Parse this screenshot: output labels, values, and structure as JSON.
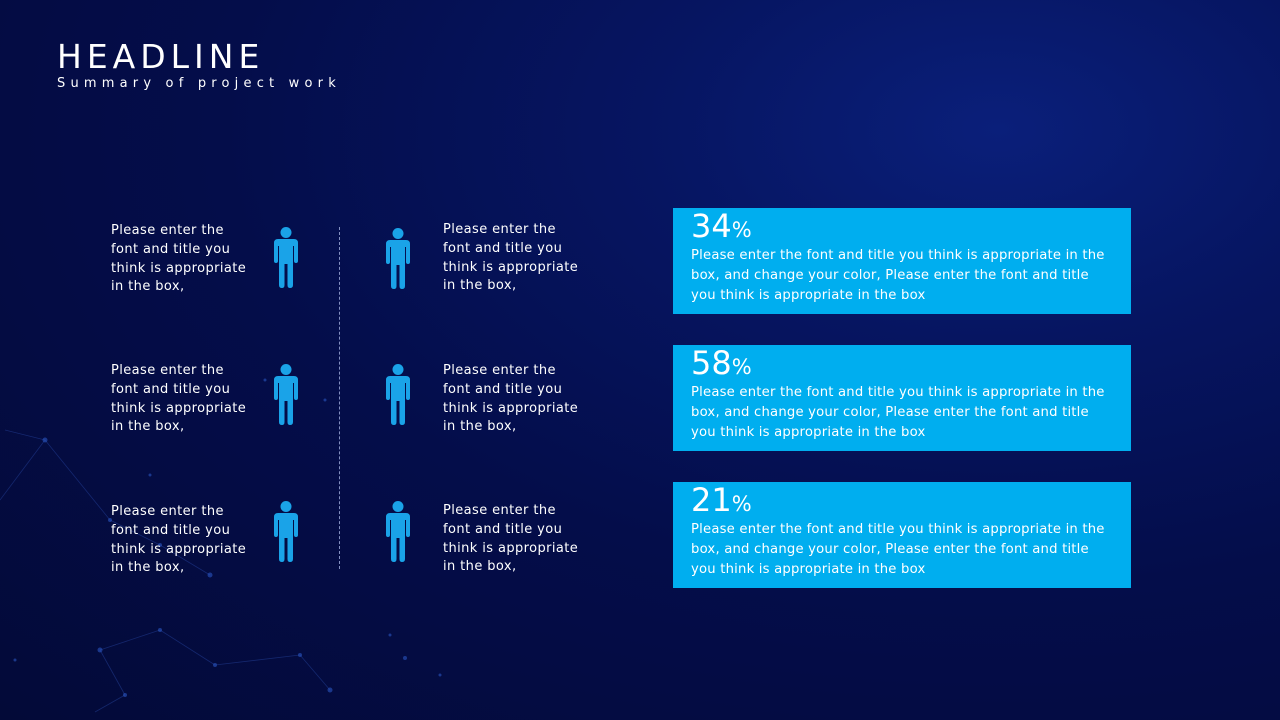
{
  "header": {
    "title": "HEADLINE",
    "subtitle": "Summary of project work"
  },
  "items": [
    {
      "text": "Please enter the font and title you think is appropriate in the box,"
    },
    {
      "text": "Please enter the font and title you think is appropriate in the box,"
    },
    {
      "text": "Please enter the font and title you think is appropriate in the box,"
    },
    {
      "text": "Please enter the font and title you think is appropriate in the box,"
    },
    {
      "text": "Please enter the font and title you think is appropriate in the box,"
    },
    {
      "text": "Please enter the font and title you think is appropriate in the box,"
    }
  ],
  "icons": {
    "person": "person-icon"
  },
  "stats": [
    {
      "value": "34",
      "unit": "%",
      "description": "Please enter the font and title you think is appropriate in the box, and change your color, Please enter the font and title you think is appropriate in the box"
    },
    {
      "value": "58",
      "unit": "%",
      "description": "Please enter the font and title you think is appropriate in the box, and change your color, Please enter the font and title you think is appropriate in the box"
    },
    {
      "value": "21",
      "unit": "%",
      "description": "Please enter the font and title you think is appropriate in the box, and change your color, Please enter the font and title you think is appropriate in the box"
    }
  ],
  "colors": {
    "background": "#040d4a",
    "accent": "#00aeef",
    "icon": "#1aa3e8",
    "text": "#ffffff"
  }
}
